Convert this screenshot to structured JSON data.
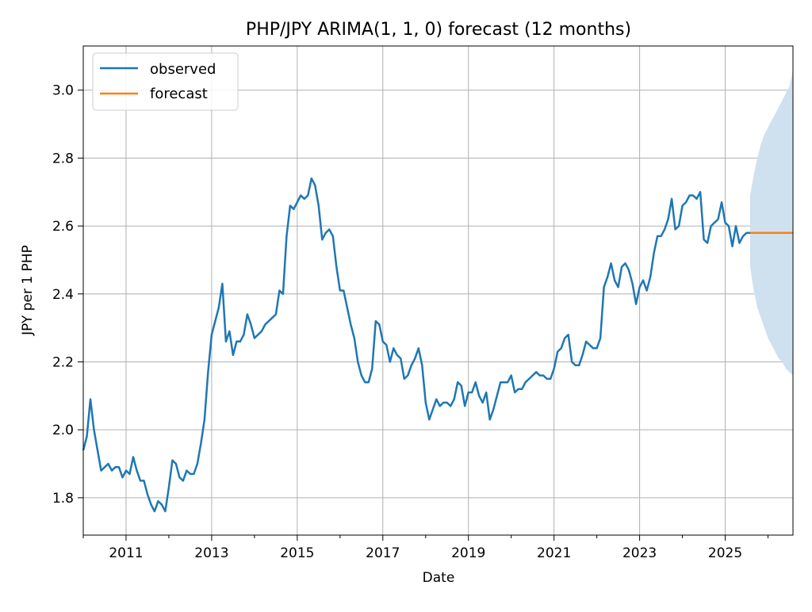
{
  "chart_data": {
    "type": "line",
    "title": "PHP/JPY ARIMA(1, 1, 0) forecast (12 months)",
    "xlabel": "Date",
    "ylabel": "JPY per 1 PHP",
    "xlim": [
      "2010-01",
      "2026-08"
    ],
    "ylim": [
      1.69,
      3.13
    ],
    "x_ticks": [
      "2011",
      "2013",
      "2015",
      "2017",
      "2019",
      "2021",
      "2023",
      "2025"
    ],
    "y_ticks": [
      "1.8",
      "2.0",
      "2.2",
      "2.4",
      "2.6",
      "2.8",
      "3.0"
    ],
    "grid": true,
    "legend": {
      "position": "top-left",
      "entries": [
        "observed",
        "forecast"
      ]
    },
    "colors": {
      "observed": "#1f77b4",
      "forecast": "#ff7f0e",
      "confidence_band": "#cfe0ef"
    },
    "series": [
      {
        "name": "observed",
        "x": [
          "2010-01",
          "2010-02",
          "2010-03",
          "2010-04",
          "2010-05",
          "2010-06",
          "2010-07",
          "2010-08",
          "2010-09",
          "2010-10",
          "2010-11",
          "2010-12",
          "2011-01",
          "2011-02",
          "2011-03",
          "2011-04",
          "2011-05",
          "2011-06",
          "2011-07",
          "2011-08",
          "2011-09",
          "2011-10",
          "2011-11",
          "2011-12",
          "2012-01",
          "2012-02",
          "2012-03",
          "2012-04",
          "2012-05",
          "2012-06",
          "2012-07",
          "2012-08",
          "2012-09",
          "2012-10",
          "2012-11",
          "2012-12",
          "2013-01",
          "2013-02",
          "2013-03",
          "2013-04",
          "2013-05",
          "2013-06",
          "2013-07",
          "2013-08",
          "2013-09",
          "2013-10",
          "2013-11",
          "2013-12",
          "2014-01",
          "2014-02",
          "2014-03",
          "2014-04",
          "2014-05",
          "2014-06",
          "2014-07",
          "2014-08",
          "2014-09",
          "2014-10",
          "2014-11",
          "2014-12",
          "2015-01",
          "2015-02",
          "2015-03",
          "2015-04",
          "2015-05",
          "2015-06",
          "2015-07",
          "2015-08",
          "2015-09",
          "2015-10",
          "2015-11",
          "2015-12",
          "2016-01",
          "2016-02",
          "2016-03",
          "2016-04",
          "2016-05",
          "2016-06",
          "2016-07",
          "2016-08",
          "2016-09",
          "2016-10",
          "2016-11",
          "2016-12",
          "2017-01",
          "2017-02",
          "2017-03",
          "2017-04",
          "2017-05",
          "2017-06",
          "2017-07",
          "2017-08",
          "2017-09",
          "2017-10",
          "2017-11",
          "2017-12",
          "2018-01",
          "2018-02",
          "2018-03",
          "2018-04",
          "2018-05",
          "2018-06",
          "2018-07",
          "2018-08",
          "2018-09",
          "2018-10",
          "2018-11",
          "2018-12",
          "2019-01",
          "2019-02",
          "2019-03",
          "2019-04",
          "2019-05",
          "2019-06",
          "2019-07",
          "2019-08",
          "2019-09",
          "2019-10",
          "2019-11",
          "2019-12",
          "2020-01",
          "2020-02",
          "2020-03",
          "2020-04",
          "2020-05",
          "2020-06",
          "2020-07",
          "2020-08",
          "2020-09",
          "2020-10",
          "2020-11",
          "2020-12",
          "2021-01",
          "2021-02",
          "2021-03",
          "2021-04",
          "2021-05",
          "2021-06",
          "2021-07",
          "2021-08",
          "2021-09",
          "2021-10",
          "2021-11",
          "2021-12",
          "2022-01",
          "2022-02",
          "2022-03",
          "2022-04",
          "2022-05",
          "2022-06",
          "2022-07",
          "2022-08",
          "2022-09",
          "2022-10",
          "2022-11",
          "2022-12",
          "2023-01",
          "2023-02",
          "2023-03",
          "2023-04",
          "2023-05",
          "2023-06",
          "2023-07",
          "2023-08",
          "2023-09",
          "2023-10",
          "2023-11",
          "2023-12",
          "2024-01",
          "2024-02",
          "2024-03",
          "2024-04",
          "2024-05",
          "2024-06",
          "2024-07",
          "2024-08",
          "2024-09",
          "2024-10",
          "2024-11",
          "2024-12",
          "2025-01",
          "2025-02",
          "2025-03",
          "2025-04",
          "2025-05",
          "2025-06",
          "2025-07",
          "2025-08"
        ],
        "values": [
          1.94,
          1.98,
          2.09,
          2.0,
          1.94,
          1.88,
          1.89,
          1.9,
          1.88,
          1.89,
          1.89,
          1.86,
          1.88,
          1.87,
          1.92,
          1.88,
          1.85,
          1.85,
          1.81,
          1.78,
          1.76,
          1.79,
          1.78,
          1.76,
          1.83,
          1.91,
          1.9,
          1.86,
          1.85,
          1.88,
          1.87,
          1.87,
          1.9,
          1.96,
          2.03,
          2.17,
          2.28,
          2.32,
          2.36,
          2.43,
          2.26,
          2.29,
          2.22,
          2.26,
          2.26,
          2.28,
          2.34,
          2.31,
          2.27,
          2.28,
          2.29,
          2.31,
          2.32,
          2.33,
          2.34,
          2.41,
          2.4,
          2.57,
          2.66,
          2.65,
          2.67,
          2.69,
          2.68,
          2.69,
          2.74,
          2.72,
          2.66,
          2.56,
          2.58,
          2.59,
          2.57,
          2.48,
          2.41,
          2.41,
          2.36,
          2.31,
          2.27,
          2.2,
          2.16,
          2.14,
          2.14,
          2.18,
          2.32,
          2.31,
          2.26,
          2.25,
          2.2,
          2.24,
          2.22,
          2.21,
          2.15,
          2.16,
          2.19,
          2.21,
          2.24,
          2.19,
          2.08,
          2.03,
          2.06,
          2.09,
          2.07,
          2.08,
          2.08,
          2.07,
          2.09,
          2.14,
          2.13,
          2.07,
          2.11,
          2.11,
          2.14,
          2.1,
          2.08,
          2.11,
          2.03,
          2.06,
          2.1,
          2.14,
          2.14,
          2.14,
          2.16,
          2.11,
          2.12,
          2.12,
          2.14,
          2.15,
          2.16,
          2.17,
          2.16,
          2.16,
          2.15,
          2.15,
          2.18,
          2.23,
          2.24,
          2.27,
          2.28,
          2.2,
          2.19,
          2.19,
          2.22,
          2.26,
          2.25,
          2.24,
          2.24,
          2.27,
          2.42,
          2.45,
          2.49,
          2.44,
          2.42,
          2.48,
          2.49,
          2.47,
          2.43,
          2.37,
          2.42,
          2.44,
          2.41,
          2.45,
          2.52,
          2.57,
          2.57,
          2.59,
          2.62,
          2.68,
          2.59,
          2.6,
          2.66,
          2.67,
          2.69,
          2.69,
          2.68,
          2.7,
          2.56,
          2.55,
          2.6,
          2.61,
          2.62,
          2.67,
          2.61,
          2.6,
          2.54,
          2.6,
          2.55,
          2.57,
          2.58,
          2.58
        ]
      },
      {
        "name": "forecast",
        "x": [
          "2025-08",
          "2025-09",
          "2025-10",
          "2025-11",
          "2025-12",
          "2026-01",
          "2026-02",
          "2026-03",
          "2026-04",
          "2026-05",
          "2026-06",
          "2026-07",
          "2026-08"
        ],
        "values": [
          2.58,
          2.58,
          2.58,
          2.58,
          2.58,
          2.58,
          2.58,
          2.58,
          2.58,
          2.58,
          2.58,
          2.58,
          2.58
        ],
        "lower": [
          2.48,
          2.41,
          2.36,
          2.33,
          2.3,
          2.27,
          2.25,
          2.23,
          2.21,
          2.2,
          2.18,
          2.17,
          2.16
        ],
        "upper": [
          2.69,
          2.75,
          2.8,
          2.84,
          2.87,
          2.89,
          2.91,
          2.93,
          2.95,
          2.97,
          2.99,
          3.01,
          3.06
        ]
      }
    ]
  }
}
